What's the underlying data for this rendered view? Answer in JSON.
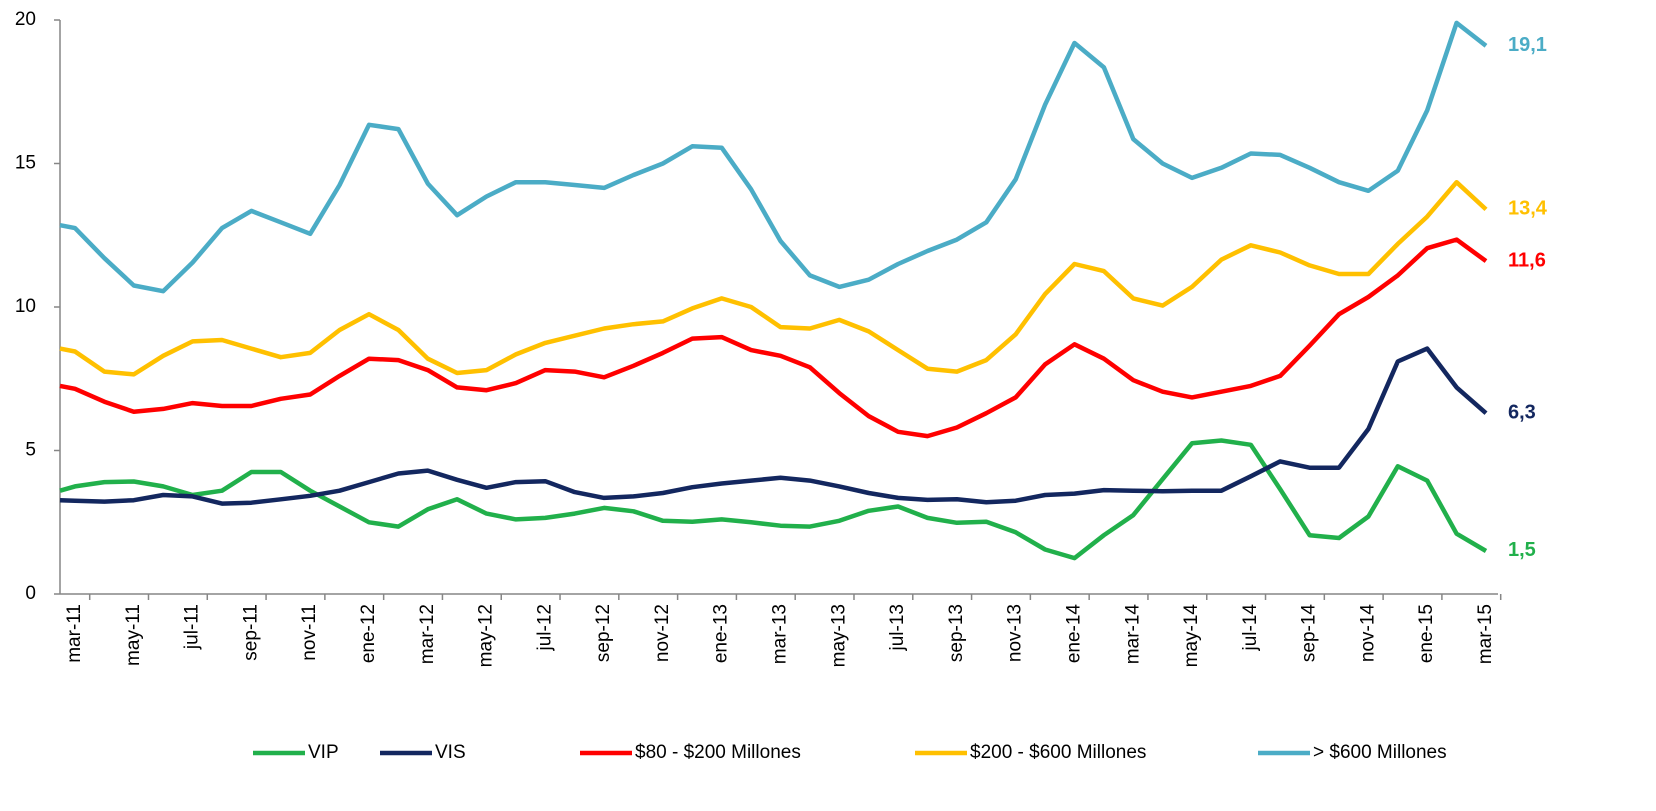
{
  "chart_data": {
    "type": "line",
    "categories": [
      null,
      "mar-11",
      null,
      "may-11",
      null,
      "jul-11",
      null,
      "sep-11",
      null,
      "nov-11",
      null,
      "ene-12",
      null,
      "mar-12",
      null,
      "may-12",
      null,
      "jul-12",
      null,
      "sep-12",
      null,
      "nov-12",
      null,
      "ene-13",
      null,
      "mar-13",
      null,
      "may-13",
      null,
      "jul-13",
      null,
      "sep-13",
      null,
      "nov-13",
      null,
      "ene-14",
      null,
      "mar-14",
      null,
      "may-14",
      null,
      "jul-14",
      null,
      "sep-14",
      null,
      "nov-14",
      null,
      "ene-15",
      null,
      "mar-15"
    ],
    "ylim": [
      0,
      20
    ],
    "yticks": [
      0,
      5,
      10,
      15,
      20
    ],
    "grid": false,
    "legend": "bottom",
    "series": [
      {
        "name": "VIP",
        "color": "#21b04b",
        "values": [
          3.6,
          3.75,
          3.9,
          3.92,
          3.75,
          3.45,
          3.6,
          4.25,
          4.25,
          3.6,
          3.05,
          2.5,
          2.35,
          2.95,
          3.3,
          2.8,
          2.6,
          2.65,
          2.8,
          3.0,
          2.88,
          2.55,
          2.52,
          2.6,
          2.5,
          2.38,
          2.35,
          2.55,
          2.9,
          3.05,
          2.65,
          2.48,
          2.52,
          2.15,
          1.55,
          1.25,
          2.05,
          2.75,
          4.0,
          5.25,
          5.35,
          5.2,
          3.65,
          2.05,
          1.95,
          2.7,
          4.45,
          3.95,
          2.1,
          1.5
        ],
        "value_labels": [
          null,
          null,
          null,
          null,
          null,
          null,
          null,
          null,
          null,
          null,
          null,
          null,
          null,
          null,
          null,
          null,
          null,
          null,
          null,
          null,
          null,
          null,
          null,
          null,
          null,
          null,
          null,
          null,
          null,
          null,
          null,
          null,
          null,
          null,
          null,
          null,
          null,
          null,
          null,
          null,
          null,
          null,
          null,
          null,
          null,
          null,
          null,
          null,
          null,
          "1,5"
        ]
      },
      {
        "name": "VIS",
        "color": "#13275f",
        "values": [
          3.27,
          3.25,
          3.22,
          3.27,
          3.45,
          3.4,
          3.15,
          3.18,
          3.3,
          3.42,
          3.6,
          3.9,
          4.2,
          4.3,
          3.98,
          3.7,
          3.9,
          3.93,
          3.55,
          3.35,
          3.4,
          3.52,
          3.72,
          3.85,
          3.95,
          4.05,
          3.95,
          3.75,
          3.52,
          3.35,
          3.28,
          3.3,
          3.2,
          3.25,
          3.45,
          3.5,
          3.62,
          3.6,
          3.58,
          3.6,
          3.6,
          4.1,
          4.62,
          4.4,
          4.4,
          5.75,
          8.1,
          8.55,
          7.2,
          6.3
        ],
        "value_labels": [
          null,
          null,
          null,
          null,
          null,
          null,
          null,
          null,
          null,
          null,
          null,
          null,
          null,
          null,
          null,
          null,
          null,
          null,
          null,
          null,
          null,
          null,
          null,
          null,
          null,
          null,
          null,
          null,
          null,
          null,
          null,
          null,
          null,
          null,
          null,
          null,
          null,
          null,
          null,
          null,
          null,
          null,
          null,
          null,
          null,
          null,
          null,
          null,
          null,
          "6,3"
        ]
      },
      {
        "name": "$80 - $200 Millones",
        "color": "#ff0000",
        "values": [
          7.25,
          7.15,
          6.7,
          6.35,
          6.45,
          6.65,
          6.55,
          6.55,
          6.8,
          6.95,
          7.6,
          8.2,
          8.15,
          7.8,
          7.2,
          7.1,
          7.35,
          7.8,
          7.75,
          7.55,
          7.95,
          8.4,
          8.9,
          8.95,
          8.5,
          8.3,
          7.9,
          7.0,
          6.2,
          5.65,
          5.5,
          5.8,
          6.3,
          6.85,
          8.0,
          8.7,
          8.2,
          7.45,
          7.05,
          6.85,
          7.05,
          7.25,
          7.6,
          8.65,
          9.75,
          10.35,
          11.1,
          12.05,
          12.35,
          11.6
        ],
        "value_labels": [
          null,
          null,
          null,
          null,
          null,
          null,
          null,
          null,
          null,
          null,
          null,
          null,
          null,
          null,
          null,
          null,
          null,
          null,
          null,
          null,
          null,
          null,
          null,
          null,
          null,
          null,
          null,
          null,
          null,
          null,
          null,
          null,
          null,
          null,
          null,
          null,
          null,
          null,
          null,
          null,
          null,
          null,
          null,
          null,
          null,
          null,
          null,
          null,
          null,
          "11,6"
        ]
      },
      {
        "name": "$200 - $600 Millones",
        "color": "#ffc000",
        "values": [
          8.55,
          8.45,
          7.75,
          7.65,
          8.3,
          8.8,
          8.85,
          8.55,
          8.25,
          8.4,
          9.2,
          9.75,
          9.2,
          8.2,
          7.7,
          7.8,
          8.35,
          8.75,
          9.0,
          9.25,
          9.4,
          9.5,
          9.95,
          10.3,
          10.0,
          9.3,
          9.25,
          9.55,
          9.15,
          8.5,
          7.85,
          7.75,
          8.15,
          9.05,
          10.45,
          11.5,
          11.25,
          10.3,
          10.05,
          10.7,
          11.65,
          12.15,
          11.9,
          11.45,
          11.15,
          11.15,
          12.2,
          13.15,
          14.35,
          13.4
        ],
        "value_labels": [
          null,
          null,
          null,
          null,
          null,
          null,
          null,
          null,
          null,
          null,
          null,
          null,
          null,
          null,
          null,
          null,
          null,
          null,
          null,
          null,
          null,
          null,
          null,
          null,
          null,
          null,
          null,
          null,
          null,
          null,
          null,
          null,
          null,
          null,
          null,
          null,
          null,
          null,
          null,
          null,
          null,
          null,
          null,
          null,
          null,
          null,
          null,
          null,
          null,
          "13,4"
        ]
      },
      {
        "name": "> $600 Millones",
        "color": "#4bacc6",
        "values": [
          12.85,
          12.75,
          11.7,
          10.75,
          10.55,
          11.55,
          12.75,
          13.35,
          12.95,
          12.55,
          14.25,
          16.35,
          16.2,
          14.3,
          13.2,
          13.85,
          14.35,
          14.35,
          14.25,
          14.15,
          14.6,
          15.0,
          15.6,
          15.55,
          14.1,
          12.3,
          11.1,
          10.7,
          10.95,
          11.5,
          11.95,
          12.35,
          12.95,
          14.45,
          17.05,
          19.2,
          18.35,
          15.85,
          15.0,
          14.5,
          14.85,
          15.35,
          15.3,
          14.85,
          14.35,
          14.05,
          14.75,
          16.85,
          19.9,
          19.1
        ],
        "value_labels": [
          null,
          null,
          null,
          null,
          null,
          null,
          null,
          null,
          null,
          null,
          null,
          null,
          null,
          null,
          null,
          null,
          null,
          null,
          null,
          null,
          null,
          null,
          null,
          null,
          null,
          null,
          null,
          null,
          null,
          null,
          null,
          null,
          null,
          null,
          null,
          null,
          null,
          null,
          null,
          null,
          null,
          null,
          null,
          null,
          null,
          null,
          null,
          null,
          null,
          "19,1"
        ]
      }
    ]
  }
}
